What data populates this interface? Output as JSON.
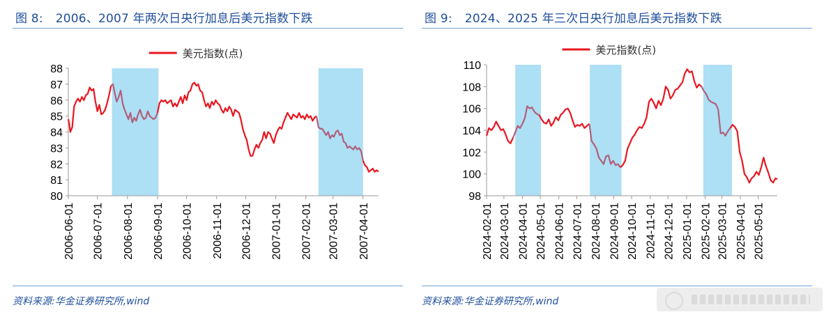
{
  "left": {
    "fig_label": "图 8:",
    "title": "2006、2007 年两次日央行加息后美元指数下跌",
    "source": "资料来源:华金证券研究所,wind",
    "chart_data": {
      "type": "line",
      "title": "2006、2007 年两次日央行加息后美元指数下跌",
      "legend": "美元指数(点)",
      "colors": {
        "line": "#E8161F",
        "highlight_band": "#ADDFF5",
        "line_in_band": "#B0607A"
      },
      "ylim": [
        80,
        88
      ],
      "yticks": [
        80,
        81,
        82,
        83,
        84,
        85,
        86,
        87,
        88
      ],
      "xlim": [
        0,
        320
      ],
      "xticks": [
        {
          "label": "2006-06-01",
          "day": 0
        },
        {
          "label": "2006-07-01",
          "day": 30
        },
        {
          "label": "2006-08-01",
          "day": 61
        },
        {
          "label": "2006-09-01",
          "day": 92
        },
        {
          "label": "2006-10-01",
          "day": 122
        },
        {
          "label": "2006-11-01",
          "day": 153
        },
        {
          "label": "2006-12-01",
          "day": 183
        },
        {
          "label": "2007-01-01",
          "day": 214
        },
        {
          "label": "2007-02-01",
          "day": 245
        },
        {
          "label": "2007-03-01",
          "day": 273
        },
        {
          "label": "2007-04-01",
          "day": 304
        }
      ],
      "highlight_periods": [
        {
          "start_day": 45,
          "end_day": 93
        },
        {
          "start_day": 258,
          "end_day": 304
        }
      ],
      "series": [
        {
          "name": "美元指数(点)",
          "x": [
            0,
            1,
            2,
            4,
            6,
            8,
            10,
            12,
            14,
            16,
            18,
            20,
            22,
            24,
            26,
            28,
            30,
            32,
            34,
            36,
            38,
            40,
            42,
            44,
            46,
            48,
            50,
            52,
            54,
            56,
            58,
            60,
            62,
            64,
            66,
            68,
            70,
            72,
            74,
            76,
            78,
            80,
            82,
            84,
            86,
            88,
            90,
            92,
            94,
            96,
            98,
            100,
            102,
            104,
            106,
            108,
            110,
            112,
            114,
            116,
            118,
            120,
            122,
            124,
            126,
            128,
            130,
            132,
            134,
            136,
            138,
            140,
            142,
            144,
            146,
            148,
            150,
            152,
            154,
            156,
            158,
            160,
            162,
            164,
            166,
            168,
            170,
            172,
            174,
            176,
            178,
            180,
            182,
            184,
            186,
            188,
            190,
            192,
            194,
            196,
            198,
            200,
            202,
            204,
            206,
            208,
            210,
            212,
            214,
            216,
            218,
            220,
            222,
            224,
            226,
            228,
            230,
            232,
            234,
            236,
            238,
            240,
            242,
            244,
            246,
            248,
            250,
            252,
            254,
            256,
            258,
            260,
            262,
            264,
            266,
            268,
            270,
            272,
            274,
            276,
            278,
            280,
            282,
            284,
            286,
            288,
            290,
            292,
            294,
            296,
            298,
            300,
            302,
            304,
            306,
            308,
            310,
            312,
            314,
            316,
            318,
            320
          ],
          "values": [
            84.8,
            84.5,
            84.0,
            84.3,
            85.6,
            85.9,
            86.1,
            85.9,
            86.2,
            86.0,
            86.3,
            86.4,
            86.8,
            86.6,
            86.7,
            85.9,
            85.3,
            85.7,
            85.1,
            85.2,
            85.4,
            85.8,
            86.3,
            86.9,
            87.0,
            86.4,
            85.9,
            86.2,
            86.6,
            85.8,
            85.4,
            85.1,
            84.8,
            85.2,
            84.6,
            84.9,
            84.7,
            85.1,
            85.4,
            85.0,
            84.8,
            84.9,
            85.3,
            85.0,
            84.9,
            84.8,
            84.9,
            85.2,
            85.8,
            86.0,
            85.9,
            86.0,
            85.8,
            85.9,
            86.0,
            85.6,
            85.8,
            85.6,
            85.9,
            86.2,
            85.8,
            86.3,
            86.0,
            86.5,
            86.6,
            87.0,
            87.1,
            86.9,
            87.0,
            86.6,
            86.5,
            86.0,
            85.6,
            85.8,
            85.5,
            85.9,
            85.7,
            86.0,
            85.8,
            85.7,
            85.4,
            85.2,
            85.5,
            85.3,
            85.6,
            85.4,
            85.0,
            85.4,
            85.3,
            85.2,
            84.8,
            84.2,
            83.8,
            83.5,
            82.9,
            82.5,
            82.5,
            82.9,
            83.2,
            83.0,
            83.3,
            83.5,
            84.0,
            83.6,
            84.0,
            83.9,
            83.6,
            83.3,
            83.8,
            84.1,
            84.3,
            84.2,
            84.6,
            84.9,
            85.2,
            85.0,
            84.8,
            85.1,
            85.0,
            84.9,
            85.2,
            84.9,
            85.0,
            84.8,
            85.1,
            84.9,
            85.0,
            84.7,
            84.9,
            85.0,
            84.3,
            84.2,
            84.2,
            84.0,
            83.8,
            84.0,
            83.6,
            83.8,
            83.7,
            84.0,
            84.1,
            83.8,
            83.9,
            83.4,
            83.3,
            83.0,
            83.1,
            83.0,
            82.9,
            83.1,
            82.9,
            83.0,
            82.8,
            82.2,
            81.9,
            81.8,
            81.5,
            81.6,
            81.7,
            81.5,
            81.6,
            81.5
          ]
        }
      ]
    }
  },
  "right": {
    "fig_label": "图 9:",
    "title": "2024、2025 年三次日央行加息后美元指数下跌",
    "source": "资料来源:华金证券研究所,wind",
    "chart_data": {
      "type": "line",
      "title": "2024、2025 年三次日央行加息后美元指数下跌",
      "legend": "美元指数(点)",
      "colors": {
        "line": "#E8161F",
        "highlight_band": "#ADDFF5",
        "line_in_band": "#B0607A"
      },
      "ylim": [
        98,
        110
      ],
      "yticks": [
        98,
        100,
        102,
        104,
        106,
        108,
        110
      ],
      "xlim": [
        0,
        487
      ],
      "xticks": [
        {
          "label": "2024-02-01",
          "day": 0
        },
        {
          "label": "2024-03-01",
          "day": 29
        },
        {
          "label": "2024-04-01",
          "day": 60
        },
        {
          "label": "2024-05-01",
          "day": 90
        },
        {
          "label": "2024-06-01",
          "day": 121
        },
        {
          "label": "2024-07-01",
          "day": 151
        },
        {
          "label": "2024-08-01",
          "day": 182
        },
        {
          "label": "2024-09-01",
          "day": 213
        },
        {
          "label": "2024-10-01",
          "day": 243
        },
        {
          "label": "2024-11-01",
          "day": 274
        },
        {
          "label": "2024-12-01",
          "day": 304
        },
        {
          "label": "2025-01-01",
          "day": 335
        },
        {
          "label": "2025-02-01",
          "day": 366
        },
        {
          "label": "2025-03-01",
          "day": 394
        },
        {
          "label": "2025-04-01",
          "day": 425
        },
        {
          "label": "2025-05-01",
          "day": 455
        }
      ],
      "highlight_periods": [
        {
          "start_day": 48,
          "end_day": 91
        },
        {
          "start_day": 173,
          "end_day": 226
        },
        {
          "start_day": 363,
          "end_day": 411
        }
      ],
      "series": [
        {
          "name": "美元指数(点)",
          "x": [
            0,
            4,
            8,
            12,
            16,
            20,
            24,
            28,
            32,
            36,
            40,
            44,
            48,
            52,
            56,
            60,
            64,
            68,
            72,
            76,
            80,
            84,
            88,
            92,
            96,
            100,
            104,
            108,
            112,
            116,
            120,
            124,
            128,
            132,
            136,
            140,
            144,
            148,
            152,
            156,
            160,
            164,
            168,
            172,
            176,
            180,
            184,
            188,
            192,
            196,
            200,
            204,
            208,
            212,
            216,
            220,
            224,
            228,
            232,
            236,
            240,
            244,
            248,
            252,
            256,
            260,
            264,
            268,
            272,
            276,
            280,
            284,
            288,
            292,
            296,
            300,
            304,
            308,
            312,
            316,
            320,
            324,
            328,
            332,
            336,
            340,
            344,
            348,
            352,
            356,
            360,
            364,
            368,
            372,
            376,
            380,
            384,
            388,
            392,
            396,
            400,
            404,
            408,
            412,
            416,
            420,
            424,
            428,
            432,
            436,
            440,
            444,
            448,
            452,
            456,
            460,
            464,
            468,
            472,
            476,
            480,
            484,
            487
          ],
          "values": [
            103.5,
            104.2,
            104.0,
            104.3,
            104.8,
            104.4,
            104.0,
            104.1,
            103.6,
            103.0,
            102.8,
            103.3,
            103.8,
            104.4,
            104.2,
            104.6,
            105.1,
            106.2,
            106.0,
            106.1,
            105.7,
            105.5,
            105.4,
            105.0,
            104.7,
            104.6,
            105.0,
            104.4,
            104.7,
            105.2,
            104.9,
            105.4,
            105.6,
            105.9,
            106.0,
            105.6,
            104.9,
            104.3,
            104.5,
            104.4,
            104.6,
            104.2,
            104.4,
            104.6,
            103.0,
            102.7,
            102.3,
            101.5,
            101.2,
            100.9,
            101.6,
            101.7,
            100.9,
            101.2,
            100.8,
            100.9,
            100.6,
            100.8,
            101.2,
            102.3,
            102.8,
            103.3,
            103.6,
            104.0,
            104.3,
            104.2,
            104.6,
            105.2,
            106.6,
            106.9,
            106.5,
            106.0,
            106.7,
            106.3,
            106.9,
            108.0,
            107.7,
            106.9,
            107.2,
            107.7,
            107.8,
            108.1,
            108.4,
            109.2,
            109.6,
            109.3,
            109.4,
            108.5,
            107.9,
            108.2,
            108.0,
            107.6,
            107.3,
            106.8,
            106.6,
            106.5,
            106.4,
            105.9,
            103.7,
            103.8,
            103.5,
            103.9,
            104.2,
            104.5,
            104.3,
            103.9,
            102.0,
            101.2,
            100.0,
            99.7,
            99.2,
            99.6,
            99.8,
            100.2,
            99.9,
            100.6,
            101.5,
            100.7,
            100.1,
            99.4,
            99.2,
            99.6,
            99.5
          ]
        }
      ]
    }
  }
}
